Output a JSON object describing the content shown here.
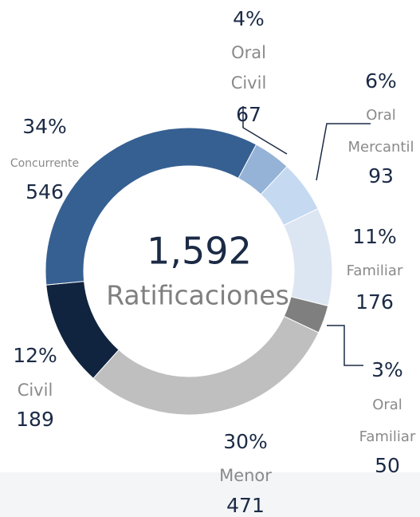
{
  "chart_data": {
    "type": "donut",
    "center_value": {
      "value": 1592,
      "label": "1,592"
    },
    "center_label": "Ratificaciones",
    "categories": [
      "Oral Civil",
      "Oral Mercantil",
      "Familiar",
      "Oral Familiar",
      "Menor",
      "Civil",
      "Concurrente"
    ],
    "category_lines": [
      [
        "Oral",
        "Civil"
      ],
      [
        "Oral",
        "Mercantil"
      ],
      [
        "Familiar"
      ],
      [
        "Oral",
        "Familiar"
      ],
      [
        "Menor"
      ],
      [
        "Civil"
      ],
      [
        "Concurrente"
      ]
    ],
    "values": [
      67,
      93,
      176,
      50,
      471,
      189,
      546
    ],
    "percent_labels": [
      "4%",
      "6%",
      "11%",
      "3%",
      "30%",
      "12%",
      "34%"
    ],
    "colors": [
      "#95b3d7",
      "#c5d9f1",
      "#dce6f2",
      "#7f7f7f",
      "#bfbfbf",
      "#10243f",
      "#366092"
    ]
  }
}
